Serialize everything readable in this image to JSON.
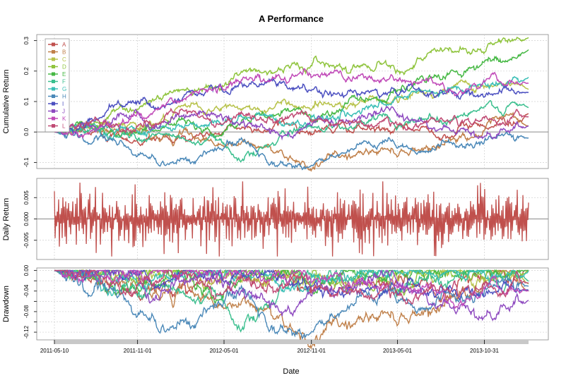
{
  "chart_data": {
    "type": "line",
    "title": "A Performance",
    "xlabel": "Date",
    "x_ticks": [
      "2011-05-10",
      "2011-11-01",
      "2012-05-01",
      "2012-11-01",
      "2013-05-01",
      "2013-10-31"
    ],
    "x_tick_days": [
      0,
      175,
      357,
      541,
      722,
      905
    ],
    "x_range_days": [
      0,
      998
    ],
    "legend": {
      "position": "top-left",
      "entries": [
        {
          "name": "A",
          "color": "#c0504d"
        },
        {
          "name": "B",
          "color": "#c0804a"
        },
        {
          "name": "C",
          "color": "#b7c24a"
        },
        {
          "name": "D",
          "color": "#8fc43d"
        },
        {
          "name": "E",
          "color": "#46b844"
        },
        {
          "name": "F",
          "color": "#3bbf8e"
        },
        {
          "name": "G",
          "color": "#3bbfb6"
        },
        {
          "name": "H",
          "color": "#4a88b8"
        },
        {
          "name": "I",
          "color": "#4b4fc0"
        },
        {
          "name": "J",
          "color": "#8e4ac0"
        },
        {
          "name": "K",
          "color": "#c04ab8"
        },
        {
          "name": "L",
          "color": "#c04a74"
        }
      ]
    },
    "panels": [
      {
        "name": "cumulative-return",
        "ylabel": "Cumulative Return",
        "ylim": [
          -0.12,
          0.32
        ],
        "y_ticks": [
          -0.1,
          0,
          0.1,
          0.2,
          0.3
        ],
        "y_tick_labels": [
          "-0.1",
          "0.0",
          "0.1",
          "0.2",
          "0.3"
        ],
        "series": [
          {
            "name": "A",
            "start": 0.0,
            "end": 0.06,
            "waypoints": [
              [
                0,
                0
              ],
              [
                0.25,
                -0.02
              ],
              [
                0.5,
                0.03
              ],
              [
                0.75,
                -0.01
              ],
              [
                0.9,
                0.03
              ],
              [
                1,
                0.06
              ]
            ]
          },
          {
            "name": "B",
            "start": 0.0,
            "end": 0.02,
            "waypoints": [
              [
                0,
                0
              ],
              [
                0.3,
                -0.02
              ],
              [
                0.5,
                -0.07
              ],
              [
                0.55,
                -0.1
              ],
              [
                0.75,
                -0.05
              ],
              [
                0.9,
                0.01
              ],
              [
                1,
                0.02
              ]
            ]
          },
          {
            "name": "C",
            "start": 0.0,
            "end": 0.14,
            "waypoints": [
              [
                0,
                0
              ],
              [
                0.25,
                0.05
              ],
              [
                0.5,
                0.09
              ],
              [
                0.75,
                0.12
              ],
              [
                0.9,
                0.16
              ],
              [
                1,
                0.14
              ]
            ]
          },
          {
            "name": "D",
            "start": 0.0,
            "end": 0.31,
            "waypoints": [
              [
                0,
                0
              ],
              [
                0.15,
                0.08
              ],
              [
                0.35,
                0.19
              ],
              [
                0.5,
                0.22
              ],
              [
                0.75,
                0.24
              ],
              [
                0.9,
                0.27
              ],
              [
                1,
                0.31
              ]
            ]
          },
          {
            "name": "E",
            "start": 0.0,
            "end": 0.27,
            "waypoints": [
              [
                0,
                0
              ],
              [
                0.3,
                0.02
              ],
              [
                0.5,
                0.05
              ],
              [
                0.65,
                0.1
              ],
              [
                0.85,
                0.2
              ],
              [
                1,
                0.27
              ]
            ]
          },
          {
            "name": "F",
            "start": 0.0,
            "end": 0.08,
            "waypoints": [
              [
                0,
                0
              ],
              [
                0.25,
                -0.01
              ],
              [
                0.4,
                -0.07
              ],
              [
                0.55,
                0.02
              ],
              [
                0.8,
                0.06
              ],
              [
                1,
                0.08
              ]
            ]
          },
          {
            "name": "G",
            "start": 0.0,
            "end": 0.18,
            "waypoints": [
              [
                0,
                0
              ],
              [
                0.3,
                0.04
              ],
              [
                0.5,
                0.04
              ],
              [
                0.7,
                0.08
              ],
              [
                0.9,
                0.15
              ],
              [
                1,
                0.18
              ]
            ]
          },
          {
            "name": "H",
            "start": 0.0,
            "end": -0.02,
            "waypoints": [
              [
                0,
                0
              ],
              [
                0.1,
                -0.04
              ],
              [
                0.22,
                -0.1
              ],
              [
                0.4,
                -0.05
              ],
              [
                0.5,
                -0.1
              ],
              [
                0.75,
                -0.05
              ],
              [
                1,
                -0.02
              ]
            ]
          },
          {
            "name": "I",
            "start": 0.0,
            "end": 0.13,
            "waypoints": [
              [
                0,
                0
              ],
              [
                0.2,
                0.09
              ],
              [
                0.4,
                0.15
              ],
              [
                0.6,
                0.12
              ],
              [
                0.8,
                0.14
              ],
              [
                1,
                0.13
              ]
            ]
          },
          {
            "name": "J",
            "start": 0.0,
            "end": 0.02,
            "waypoints": [
              [
                0,
                0
              ],
              [
                0.3,
                0.06
              ],
              [
                0.5,
                0.0
              ],
              [
                0.7,
                0.08
              ],
              [
                0.85,
                -0.01
              ],
              [
                1,
                0.02
              ]
            ]
          },
          {
            "name": "K",
            "start": 0.0,
            "end": 0.16,
            "waypoints": [
              [
                0,
                0
              ],
              [
                0.2,
                0.05
              ],
              [
                0.35,
                0.17
              ],
              [
                0.55,
                0.19
              ],
              [
                0.75,
                0.16
              ],
              [
                1,
                0.16
              ]
            ]
          },
          {
            "name": "L",
            "start": 0.0,
            "end": 0.05,
            "waypoints": [
              [
                0,
                0
              ],
              [
                0.3,
                0.03
              ],
              [
                0.5,
                0.06
              ],
              [
                0.7,
                0.02
              ],
              [
                1,
                0.05
              ]
            ]
          }
        ]
      },
      {
        "name": "daily-return",
        "ylabel": "Daily Return",
        "series_name": "A",
        "ylim": [
          -0.0095,
          0.0095
        ],
        "y_ticks": [
          -0.005,
          0,
          0.005
        ],
        "y_tick_labels": [
          "-0.005",
          "0.000",
          "0.005"
        ],
        "amplitude_range": [
          -0.0088,
          0.0088
        ]
      },
      {
        "name": "drawdown",
        "ylabel": "Drawdown",
        "ylim": [
          -0.135,
          0.005
        ],
        "y_ticks": [
          -0.12,
          -0.1,
          -0.08,
          -0.06,
          -0.04,
          -0.02,
          0
        ],
        "y_tick_labels": [
          "-0.12",
          "",
          "-0.08",
          "",
          "-0.04",
          "",
          "0.00"
        ],
        "deepest": [
          {
            "name": "B",
            "value": -0.13
          },
          {
            "name": "H",
            "value": -0.1
          },
          {
            "name": "F",
            "value": -0.1
          },
          {
            "name": "A",
            "value": -0.085
          },
          {
            "name": "J",
            "value": -0.075
          }
        ]
      }
    ]
  }
}
